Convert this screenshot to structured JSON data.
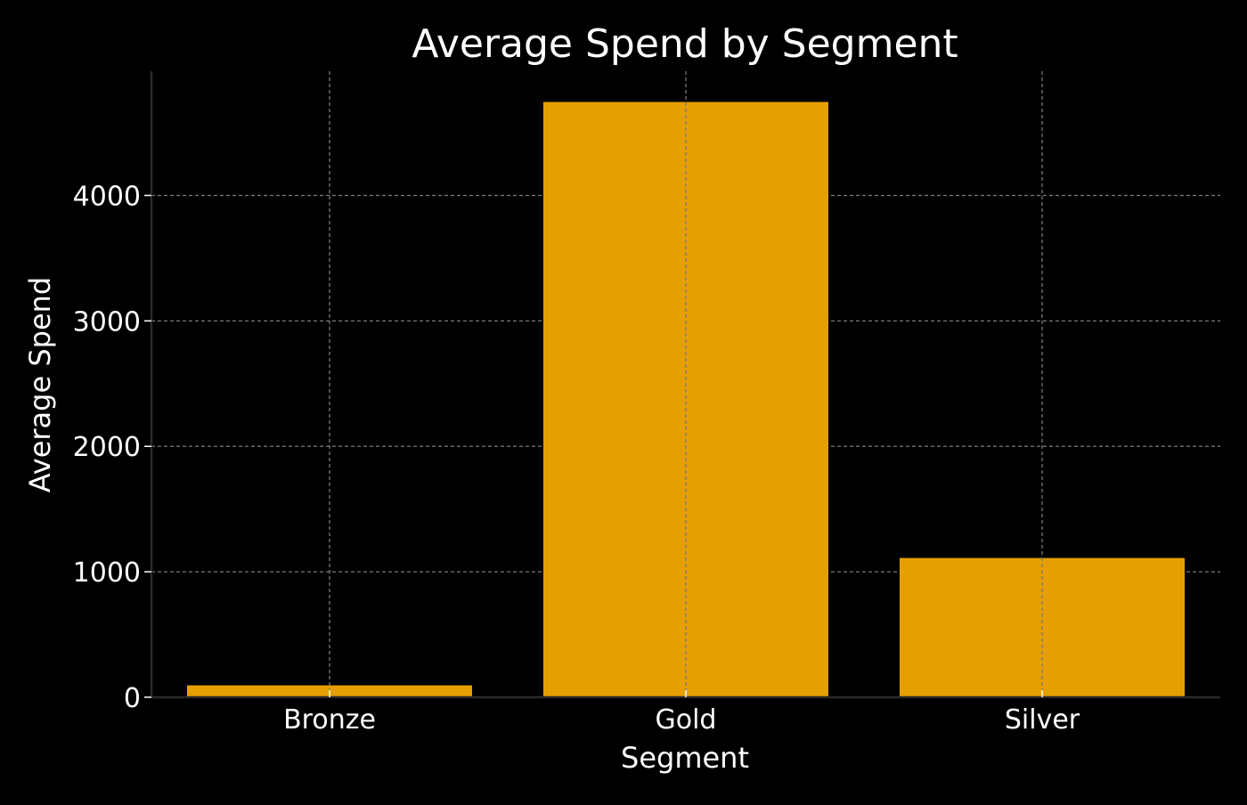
{
  "chart_data": {
    "type": "bar",
    "title": "Average Spend by Segment",
    "xlabel": "Segment",
    "ylabel": "Average Spend",
    "categories": [
      "Bronze",
      "Gold",
      "Silver"
    ],
    "values": [
      95,
      4745,
      1110
    ],
    "yticks": [
      0,
      1000,
      2000,
      3000,
      4000
    ],
    "ylim": [
      0,
      4990
    ],
    "grid": true,
    "bar_color": "#e69f00",
    "background_color": "#000000"
  }
}
